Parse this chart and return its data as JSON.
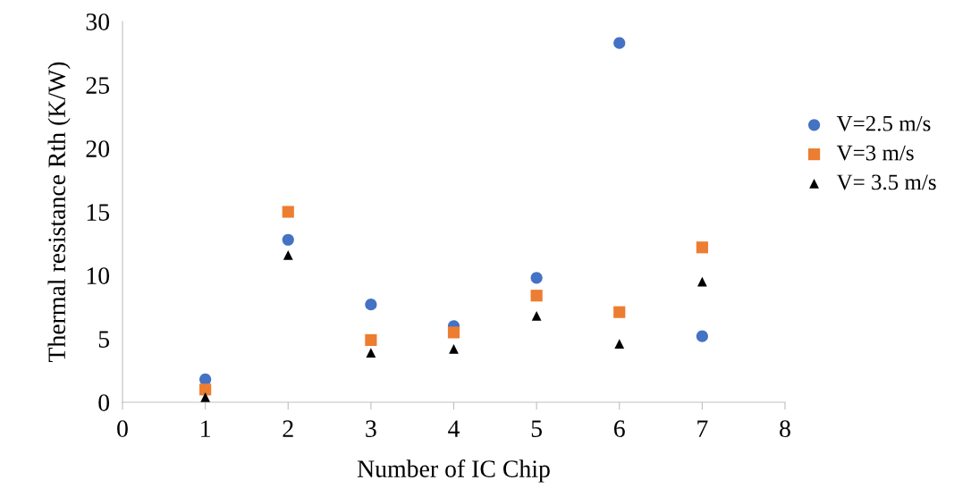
{
  "chart_data": {
    "type": "scatter",
    "xlabel": "Number of IC Chip",
    "ylabel": "Thermal resistance Rth (K/W)",
    "x": [
      1,
      2,
      3,
      4,
      5,
      6,
      7
    ],
    "series": [
      {
        "name": "V=2.5 m/s",
        "color": "#4472c4",
        "marker": "circle",
        "values": [
          1.8,
          12.8,
          7.7,
          6.0,
          9.8,
          28.3,
          5.2
        ]
      },
      {
        "name": "V=3 m/s",
        "color": "#ed7d31",
        "marker": "square",
        "values": [
          1.0,
          15.0,
          4.9,
          5.5,
          8.4,
          7.1,
          12.2
        ]
      },
      {
        "name": "V= 3.5 m/s",
        "color": "#000000",
        "marker": "triangle",
        "values": [
          0.4,
          11.6,
          3.9,
          4.2,
          6.8,
          4.6,
          9.5
        ]
      }
    ],
    "xlim": [
      0,
      8
    ],
    "xticks": [
      0,
      1,
      2,
      3,
      4,
      5,
      6,
      7,
      8
    ],
    "ylim": [
      0,
      30
    ],
    "yticks": [
      0,
      5,
      10,
      15,
      20,
      25,
      30
    ],
    "grid": false,
    "legend": "right"
  }
}
